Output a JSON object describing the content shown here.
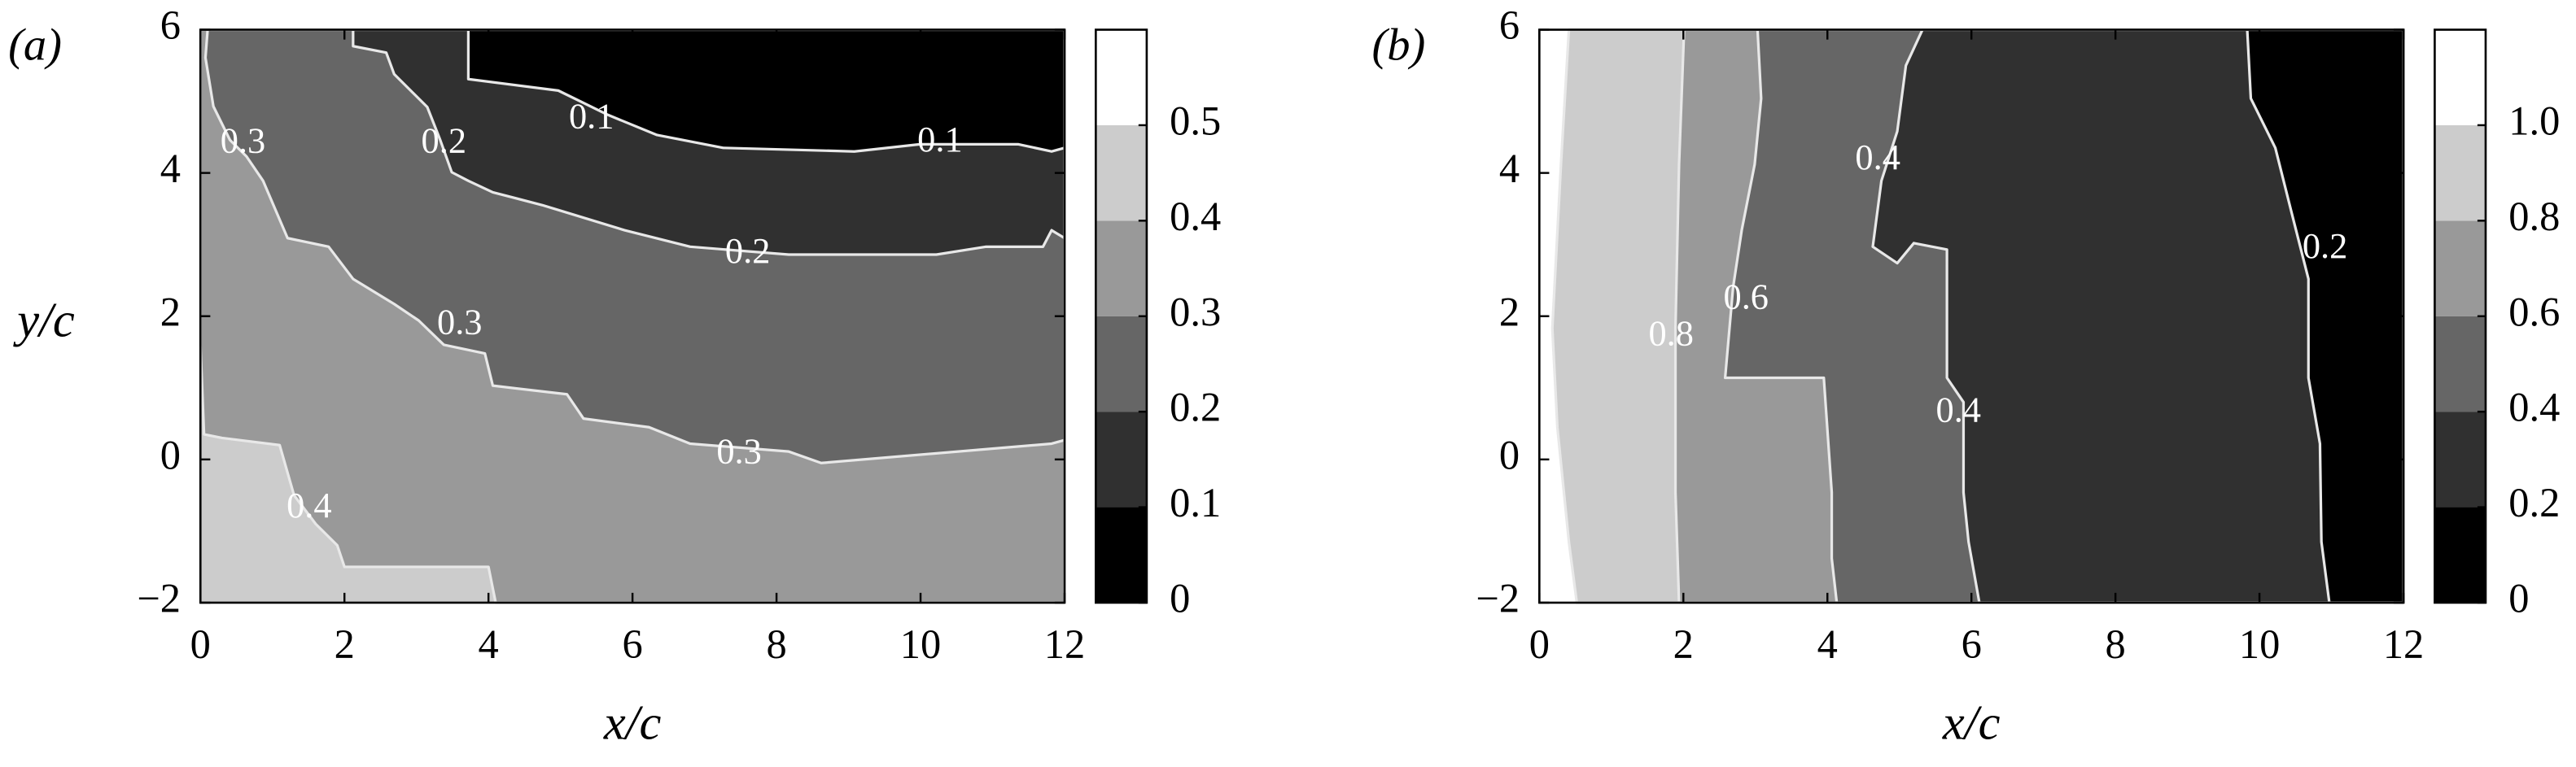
{
  "chart_data": [
    {
      "type": "contour",
      "panel_label": "(a)",
      "xlabel": "x/c",
      "ylabel": "y/c",
      "xlim": [
        0,
        12
      ],
      "ylim": [
        -2,
        6
      ],
      "xticks": [
        0,
        2,
        4,
        6,
        8,
        10,
        12
      ],
      "yticks": [
        {
          "value": -2,
          "label": "−2"
        },
        0,
        2,
        4,
        6
      ],
      "levels": [
        0,
        0.1,
        0.2,
        0.3,
        0.4,
        0.5,
        0.6
      ],
      "colors": [
        "#000000",
        "#303030",
        "#666666",
        "#999999",
        "#cccccc",
        "#ffffff"
      ],
      "colorbar_ticks": [
        0,
        0.1,
        0.2,
        0.3,
        0.4,
        0.5
      ],
      "contours": [
        {
          "level": 0.5,
          "x": [
            0,
            12,
            12,
            0
          ],
          "y": [
            -2,
            -2,
            6,
            6
          ]
        },
        {
          "level": 0.4,
          "x": [
            0,
            0.05,
            0.3,
            1.1,
            1.3,
            1.6,
            1.9,
            2.0,
            4.0,
            4.1,
            12,
            12,
            0
          ],
          "y": [
            1.6,
            0.35,
            0.3,
            0.2,
            -0.5,
            -0.9,
            -1.2,
            -1.5,
            -1.5,
            -2,
            -2,
            6,
            6
          ]
        },
        {
          "level": 0.3,
          "x": [
            0.1,
            0.07,
            0.18,
            0.41,
            0.64,
            0.87,
            1.21,
            1.78,
            2.12,
            2.69,
            3.03,
            3.38,
            3.95,
            4.06,
            5.09,
            5.32,
            6.23,
            6.8,
            8.17,
            8.62,
            11.82,
            12,
            12
          ],
          "y": [
            6,
            5.61,
            4.93,
            4.46,
            4.23,
            3.89,
            3.09,
            2.97,
            2.52,
            2.17,
            1.94,
            1.6,
            1.48,
            1.03,
            0.91,
            0.57,
            0.45,
            0.22,
            0.11,
            -0.05,
            0.22,
            0.27,
            6
          ]
        },
        {
          "level": 0.2,
          "x": [
            2.12,
            2.12,
            2.58,
            2.69,
            2.92,
            3.15,
            3.33,
            3.49,
            3.72,
            4.06,
            4.75,
            5.89,
            6.8,
            8.17,
            10.22,
            10.91,
            11.7,
            11.82,
            12,
            12
          ],
          "y": [
            6,
            5.77,
            5.68,
            5.38,
            5.15,
            4.92,
            4.46,
            4.01,
            3.89,
            3.73,
            3.55,
            3.2,
            2.97,
            2.86,
            2.86,
            2.97,
            2.97,
            3.2,
            3.09,
            6
          ]
        },
        {
          "level": 0.1,
          "x": [
            3.72,
            3.72,
            4.97,
            5.66,
            6.34,
            7.26,
            9.08,
            9.99,
            11.36,
            11.82,
            12,
            12
          ],
          "y": [
            6,
            5.31,
            5.15,
            4.81,
            4.53,
            4.35,
            4.3,
            4.4,
            4.4,
            4.3,
            4.35,
            6
          ]
        }
      ],
      "contour_labels": [
        {
          "value": 0.3,
          "x": 0.59,
          "y": 4.4
        },
        {
          "value": 0.2,
          "x": 3.38,
          "y": 4.4
        },
        {
          "value": 0.1,
          "x": 5.43,
          "y": 4.74
        },
        {
          "value": 0.1,
          "x": 10.27,
          "y": 4.42
        },
        {
          "value": 0.2,
          "x": 7.6,
          "y": 2.86
        },
        {
          "value": 0.3,
          "x": 3.6,
          "y": 1.87
        },
        {
          "value": 0.3,
          "x": 7.48,
          "y": 0.06
        },
        {
          "value": 0.4,
          "x": 1.51,
          "y": -0.69
        }
      ]
    },
    {
      "type": "contour",
      "panel_label": "(b)",
      "xlabel": "x/c",
      "xlim": [
        0,
        12
      ],
      "ylim": [
        -2,
        6
      ],
      "xticks": [
        0,
        2,
        4,
        6,
        8,
        10,
        12
      ],
      "yticks": [
        {
          "value": -2,
          "label": "−2"
        },
        0,
        2,
        4,
        6
      ],
      "levels": [
        0,
        0.2,
        0.4,
        0.6,
        0.8,
        1.0,
        1.2
      ],
      "colors": [
        "#000000",
        "#303030",
        "#666666",
        "#999999",
        "#cccccc",
        "#ffffff"
      ],
      "colorbar_ticks": [
        0,
        0.2,
        0.4,
        0.6,
        0.8,
        {
          "value": 1,
          "label": "1.0"
        }
      ],
      "contours": [
        {
          "level": 1.2,
          "x": [
            0,
            12,
            12,
            0
          ],
          "y": [
            -2,
            -2,
            6,
            6
          ]
        },
        {
          "level": 1.0,
          "x": [
            0.41,
            0.3,
            0.18,
            0.25,
            0.41,
            0.52,
            12,
            12
          ],
          "y": [
            6,
            4.12,
            1.83,
            0.45,
            -1.15,
            -2,
            -2,
            6
          ]
        },
        {
          "level": 0.8,
          "x": [
            2.01,
            1.94,
            1.89,
            1.89,
            1.94,
            12,
            12
          ],
          "y": [
            6,
            4.12,
            1.83,
            -0.46,
            -2,
            -2,
            6
          ]
        },
        {
          "level": 0.6,
          "x": [
            3.03,
            3.08,
            2.99,
            2.81,
            2.69,
            2.58,
            3.95,
            4.06,
            4.06,
            4.13,
            12,
            12
          ],
          "y": [
            6,
            5.04,
            4.12,
            3.2,
            2.4,
            1.14,
            1.14,
            -0.46,
            -1.38,
            -2,
            -2,
            6
          ]
        },
        {
          "level": 0.4,
          "x": [
            5.32,
            5.09,
            4.97,
            4.75,
            4.63,
            4.97,
            5.2,
            5.66,
            5.66,
            5.89,
            5.89,
            5.96,
            6.11,
            12,
            12
          ],
          "y": [
            6,
            5.5,
            4.58,
            3.89,
            2.97,
            2.74,
            3.02,
            2.93,
            1.14,
            0.8,
            -0.46,
            -1.15,
            -2,
            -2,
            6
          ]
        },
        {
          "level": 0.2,
          "x": [
            9.83,
            9.88,
            10.22,
            10.45,
            10.68,
            10.68,
            10.84,
            10.86,
            10.97,
            12,
            12
          ],
          "y": [
            6,
            5.04,
            4.35,
            3.43,
            2.52,
            1.14,
            0.22,
            -1.15,
            -2,
            -2,
            6
          ]
        }
      ],
      "contour_labels": [
        {
          "value": 0.4,
          "x": 4.7,
          "y": 4.17
        },
        {
          "value": 0.6,
          "x": 2.87,
          "y": 2.22
        },
        {
          "value": 0.8,
          "x": 1.83,
          "y": 1.71
        },
        {
          "value": 0.4,
          "x": 5.82,
          "y": 0.64
        },
        {
          "value": 0.2,
          "x": 10.91,
          "y": 2.93
        }
      ]
    }
  ]
}
